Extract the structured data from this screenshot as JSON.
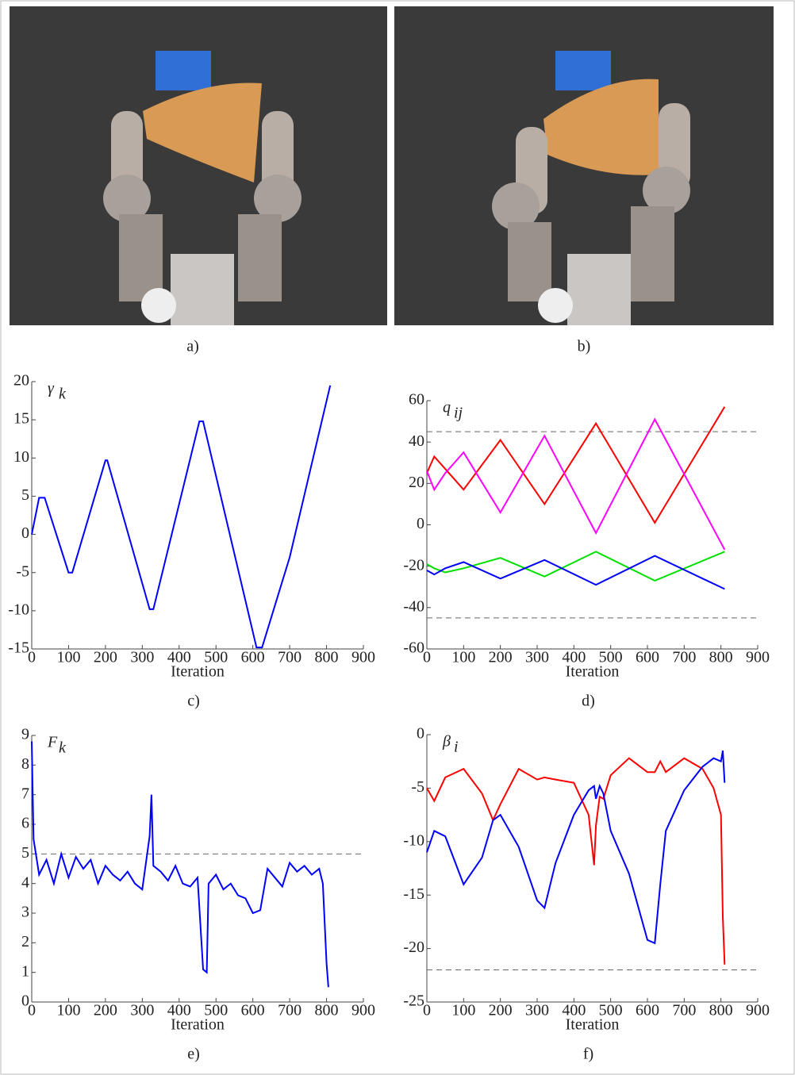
{
  "captions": [
    "a)",
    "b)"
  ],
  "chart_data": [
    {
      "type": "line",
      "caption": "c)",
      "xlabel": "Iteration",
      "annotation": {
        "main": "γ",
        "sub": "k"
      },
      "xlim": [
        0,
        900
      ],
      "xticks": [
        0,
        100,
        200,
        300,
        400,
        500,
        600,
        700,
        800,
        900
      ],
      "ylim": [
        -15,
        20
      ],
      "yticks": [
        -15,
        -10,
        -5,
        0,
        5,
        10,
        15,
        20
      ],
      "hlines": [],
      "x": [
        0,
        20,
        35,
        100,
        110,
        200,
        205,
        320,
        330,
        455,
        465,
        610,
        625,
        700,
        810
      ],
      "series": [
        {
          "color": "#0000ff",
          "values": [
            0,
            4.8,
            4.8,
            -5,
            -5,
            9.7,
            9.7,
            -9.8,
            -9.8,
            14.8,
            14.8,
            -14.8,
            -14.8,
            -3,
            19.5
          ]
        }
      ]
    },
    {
      "type": "line",
      "caption": "d)",
      "xlabel": "Iteration",
      "annotation": {
        "main": "q",
        "sub": "ij"
      },
      "xlim": [
        0,
        900
      ],
      "xticks": [
        0,
        100,
        200,
        300,
        400,
        500,
        600,
        700,
        800,
        900
      ],
      "ylim": [
        -60,
        60
      ],
      "yticks": [
        -60,
        -40,
        -20,
        0,
        20,
        40,
        60
      ],
      "hlines": [
        45,
        -45
      ],
      "x": [
        0,
        20,
        50,
        100,
        200,
        320,
        460,
        620,
        810
      ],
      "series": [
        {
          "color": "#ff0000",
          "values": [
            25,
            33,
            27,
            17,
            41,
            10,
            49,
            1,
            57
          ]
        },
        {
          "color": "#ff00ff",
          "values": [
            26,
            17,
            25,
            35,
            6,
            43,
            -4,
            51,
            -12
          ]
        },
        {
          "color": "#00e000",
          "values": [
            -19,
            -21,
            -23,
            -21,
            -16,
            -25,
            -13,
            -27,
            -13
          ]
        },
        {
          "color": "#0000ff",
          "values": [
            -22,
            -24,
            -21,
            -18,
            -26,
            -17,
            -29,
            -15,
            -31
          ]
        }
      ]
    },
    {
      "type": "line",
      "caption": "e)",
      "xlabel": "Iteration",
      "annotation": {
        "main": "F",
        "sub": "k"
      },
      "xlim": [
        0,
        900
      ],
      "xticks": [
        0,
        100,
        200,
        300,
        400,
        500,
        600,
        700,
        800,
        900
      ],
      "ylim": [
        0,
        9
      ],
      "yticks": [
        0,
        1,
        2,
        3,
        4,
        5,
        6,
        7,
        8,
        9
      ],
      "hlines": [
        5
      ],
      "x": [
        0,
        5,
        20,
        40,
        60,
        80,
        100,
        120,
        140,
        160,
        180,
        200,
        220,
        240,
        260,
        280,
        300,
        320,
        325,
        330,
        350,
        370,
        390,
        410,
        430,
        450,
        465,
        475,
        480,
        500,
        520,
        540,
        560,
        580,
        600,
        620,
        640,
        660,
        680,
        700,
        720,
        740,
        760,
        780,
        790,
        800,
        805
      ],
      "series": [
        {
          "color": "#0000ff",
          "values": [
            8.8,
            5.5,
            4.3,
            4.8,
            4.0,
            5.0,
            4.2,
            4.9,
            4.5,
            4.8,
            4.0,
            4.6,
            4.3,
            4.1,
            4.4,
            4.0,
            3.8,
            5.6,
            7.0,
            4.6,
            4.4,
            4.1,
            4.6,
            4.0,
            3.9,
            4.2,
            1.1,
            1.0,
            4.0,
            4.3,
            3.8,
            4.0,
            3.6,
            3.5,
            3.0,
            3.1,
            4.5,
            4.2,
            3.9,
            4.7,
            4.4,
            4.6,
            4.3,
            4.5,
            4.0,
            1.3,
            0.5
          ]
        }
      ]
    },
    {
      "type": "line",
      "caption": "f)",
      "xlabel": "Iteration",
      "annotation": {
        "main": "β",
        "sub": "i"
      },
      "xlim": [
        0,
        900
      ],
      "xticks": [
        0,
        100,
        200,
        300,
        400,
        500,
        600,
        700,
        800,
        900
      ],
      "ylim": [
        -25,
        0
      ],
      "yticks": [
        -25,
        -20,
        -15,
        -10,
        -5,
        0
      ],
      "hlines": [
        -22
      ],
      "x": [
        0,
        20,
        50,
        100,
        150,
        180,
        200,
        250,
        300,
        320,
        350,
        400,
        440,
        455,
        460,
        470,
        480,
        500,
        550,
        600,
        620,
        635,
        650,
        700,
        750,
        780,
        800,
        805,
        810
      ],
      "series": [
        {
          "color": "#ff0000",
          "values": [
            -5,
            -6.2,
            -4,
            -3.2,
            -5.5,
            -8,
            -6.5,
            -3.2,
            -4.2,
            -4.0,
            -4.2,
            -4.5,
            -7.5,
            -12.2,
            -8.5,
            -5.8,
            -6,
            -3.8,
            -2.2,
            -3.5,
            -3.5,
            -2.5,
            -3.5,
            -2.2,
            -3.2,
            -5,
            -7.5,
            -17,
            -21.5
          ]
        },
        {
          "color": "#0000ff",
          "values": [
            -11,
            -9,
            -9.5,
            -14,
            -11.5,
            -8,
            -7.5,
            -10.5,
            -15.5,
            -16.2,
            -12,
            -7.5,
            -5.2,
            -4.8,
            -6,
            -4.8,
            -5.5,
            -9,
            -13,
            -19.2,
            -19.5,
            -14,
            -9,
            -5.2,
            -3,
            -2.2,
            -2.5,
            -1.5,
            -4.5
          ]
        }
      ]
    }
  ]
}
